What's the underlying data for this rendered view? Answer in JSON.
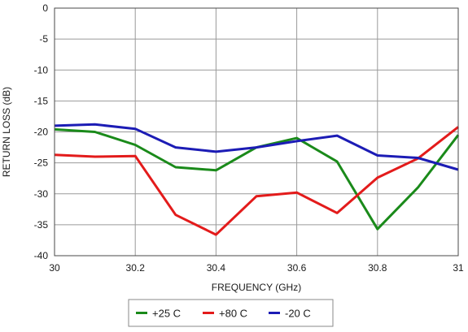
{
  "chart_data": {
    "type": "line",
    "title": "",
    "xlabel": "FREQUENCY (GHz)",
    "ylabel": "RETURN LOSS (dB)",
    "xlim": [
      30,
      31
    ],
    "ylim": [
      -40,
      0
    ],
    "xticks": [
      30,
      30.2,
      30.4,
      30.6,
      30.8,
      31
    ],
    "xtick_labels": [
      "30",
      "30.2",
      "30.4",
      "30.6",
      "30.8",
      "31"
    ],
    "yticks": [
      0,
      -5,
      -10,
      -15,
      -20,
      -25,
      -30,
      -35,
      -40
    ],
    "ytick_labels": [
      "0",
      "-5",
      "-10",
      "-15",
      "-20",
      "-25",
      "-30",
      "-35",
      "-40"
    ],
    "grid": true,
    "legend_position": "bottom",
    "x": [
      30,
      30.1,
      30.2,
      30.3,
      30.4,
      30.5,
      30.6,
      30.7,
      30.8,
      30.9,
      31
    ],
    "series": [
      {
        "name": "+25 C",
        "color": "#1a8a1a",
        "values": [
          -19.6,
          -20.0,
          -22.1,
          -25.7,
          -26.2,
          -22.5,
          -21.0,
          -24.8,
          -35.7,
          -29.0,
          -20.5
        ]
      },
      {
        "name": "+80 C",
        "color": "#e31b1b",
        "values": [
          -23.7,
          -24.0,
          -23.9,
          -33.4,
          -36.6,
          -30.4,
          -29.8,
          -33.1,
          -27.4,
          -24.3,
          -19.2
        ]
      },
      {
        "name": "-20 C",
        "color": "#1c1cb5",
        "values": [
          -19.0,
          -18.8,
          -19.5,
          -22.5,
          -23.2,
          -22.5,
          -21.5,
          -20.6,
          -23.8,
          -24.2,
          -26.1
        ]
      }
    ]
  }
}
